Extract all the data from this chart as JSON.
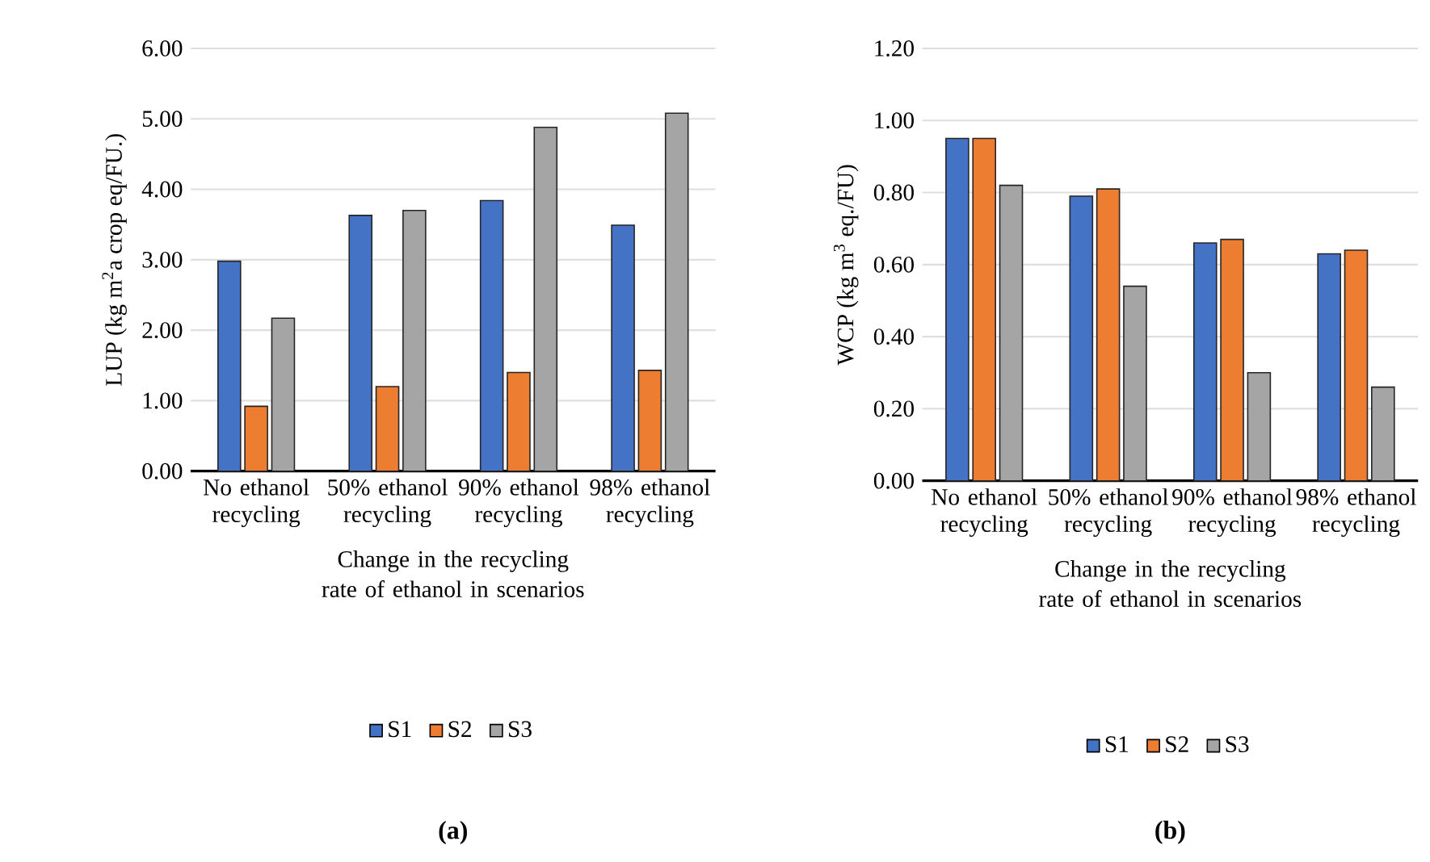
{
  "chart_data": [
    {
      "type": "bar",
      "categories": [
        "No ethanol recycling",
        "50% ethanol recycling",
        "90% ethanol recycling",
        "98% ethanol recycling"
      ],
      "series": [
        {
          "name": "S1",
          "color": "#4472c4",
          "values": [
            2.98,
            3.63,
            3.84,
            3.49
          ]
        },
        {
          "name": "S2",
          "color": "#ed7d31",
          "values": [
            0.92,
            1.2,
            1.4,
            1.43
          ]
        },
        {
          "name": "S3",
          "color": "#a5a5a5",
          "values": [
            2.17,
            3.7,
            4.88,
            5.08
          ]
        }
      ],
      "ylim": [
        0,
        6
      ],
      "yticks": [
        {
          "value": 0,
          "label": "0.00"
        },
        {
          "value": 1,
          "label": "1.00"
        },
        {
          "value": 2,
          "label": "2.00"
        },
        {
          "value": 3,
          "label": "3.00"
        },
        {
          "value": 4,
          "label": "4.00"
        },
        {
          "value": 5,
          "label": "5.00"
        },
        {
          "value": 6,
          "label": "6.00"
        }
      ],
      "xlabel": "Change in the recycling rate of ethanol in scenarios",
      "ylabel": "LUP (kg m$^{2}$a  crop eq/FU.)",
      "grid": "y",
      "legend": "bottom",
      "annotations": [
        "(a)"
      ]
    },
    {
      "type": "bar",
      "categories": [
        "No ethanol recycling",
        "50% ethanol recycling",
        "90% ethanol recycling",
        "98% ethanol recycling"
      ],
      "series": [
        {
          "name": "S1",
          "color": "#4472c4",
          "values": [
            0.95,
            0.79,
            0.66,
            0.63
          ]
        },
        {
          "name": "S2",
          "color": "#ed7d31",
          "values": [
            0.95,
            0.81,
            0.67,
            0.64
          ]
        },
        {
          "name": "S3",
          "color": "#a5a5a5",
          "values": [
            0.82,
            0.54,
            0.3,
            0.26
          ]
        }
      ],
      "ylim": [
        0,
        1.2
      ],
      "yticks": [
        {
          "value": 0,
          "label": "0.00"
        },
        {
          "value": 0.2,
          "label": "0.20"
        },
        {
          "value": 0.4,
          "label": "0.40"
        },
        {
          "value": 0.6,
          "label": "0.60"
        },
        {
          "value": 0.8,
          "label": "0.80"
        },
        {
          "value": 1.0,
          "label": "1.00"
        },
        {
          "value": 1.2,
          "label": "1.20"
        }
      ],
      "xlabel": "Change in the recycling rate of ethanol  in scenarios",
      "ylabel": "WCP (kg m$^{3}$ eq./FU)",
      "grid": "y",
      "legend": "bottom",
      "annotations": [
        "(b)"
      ]
    }
  ]
}
